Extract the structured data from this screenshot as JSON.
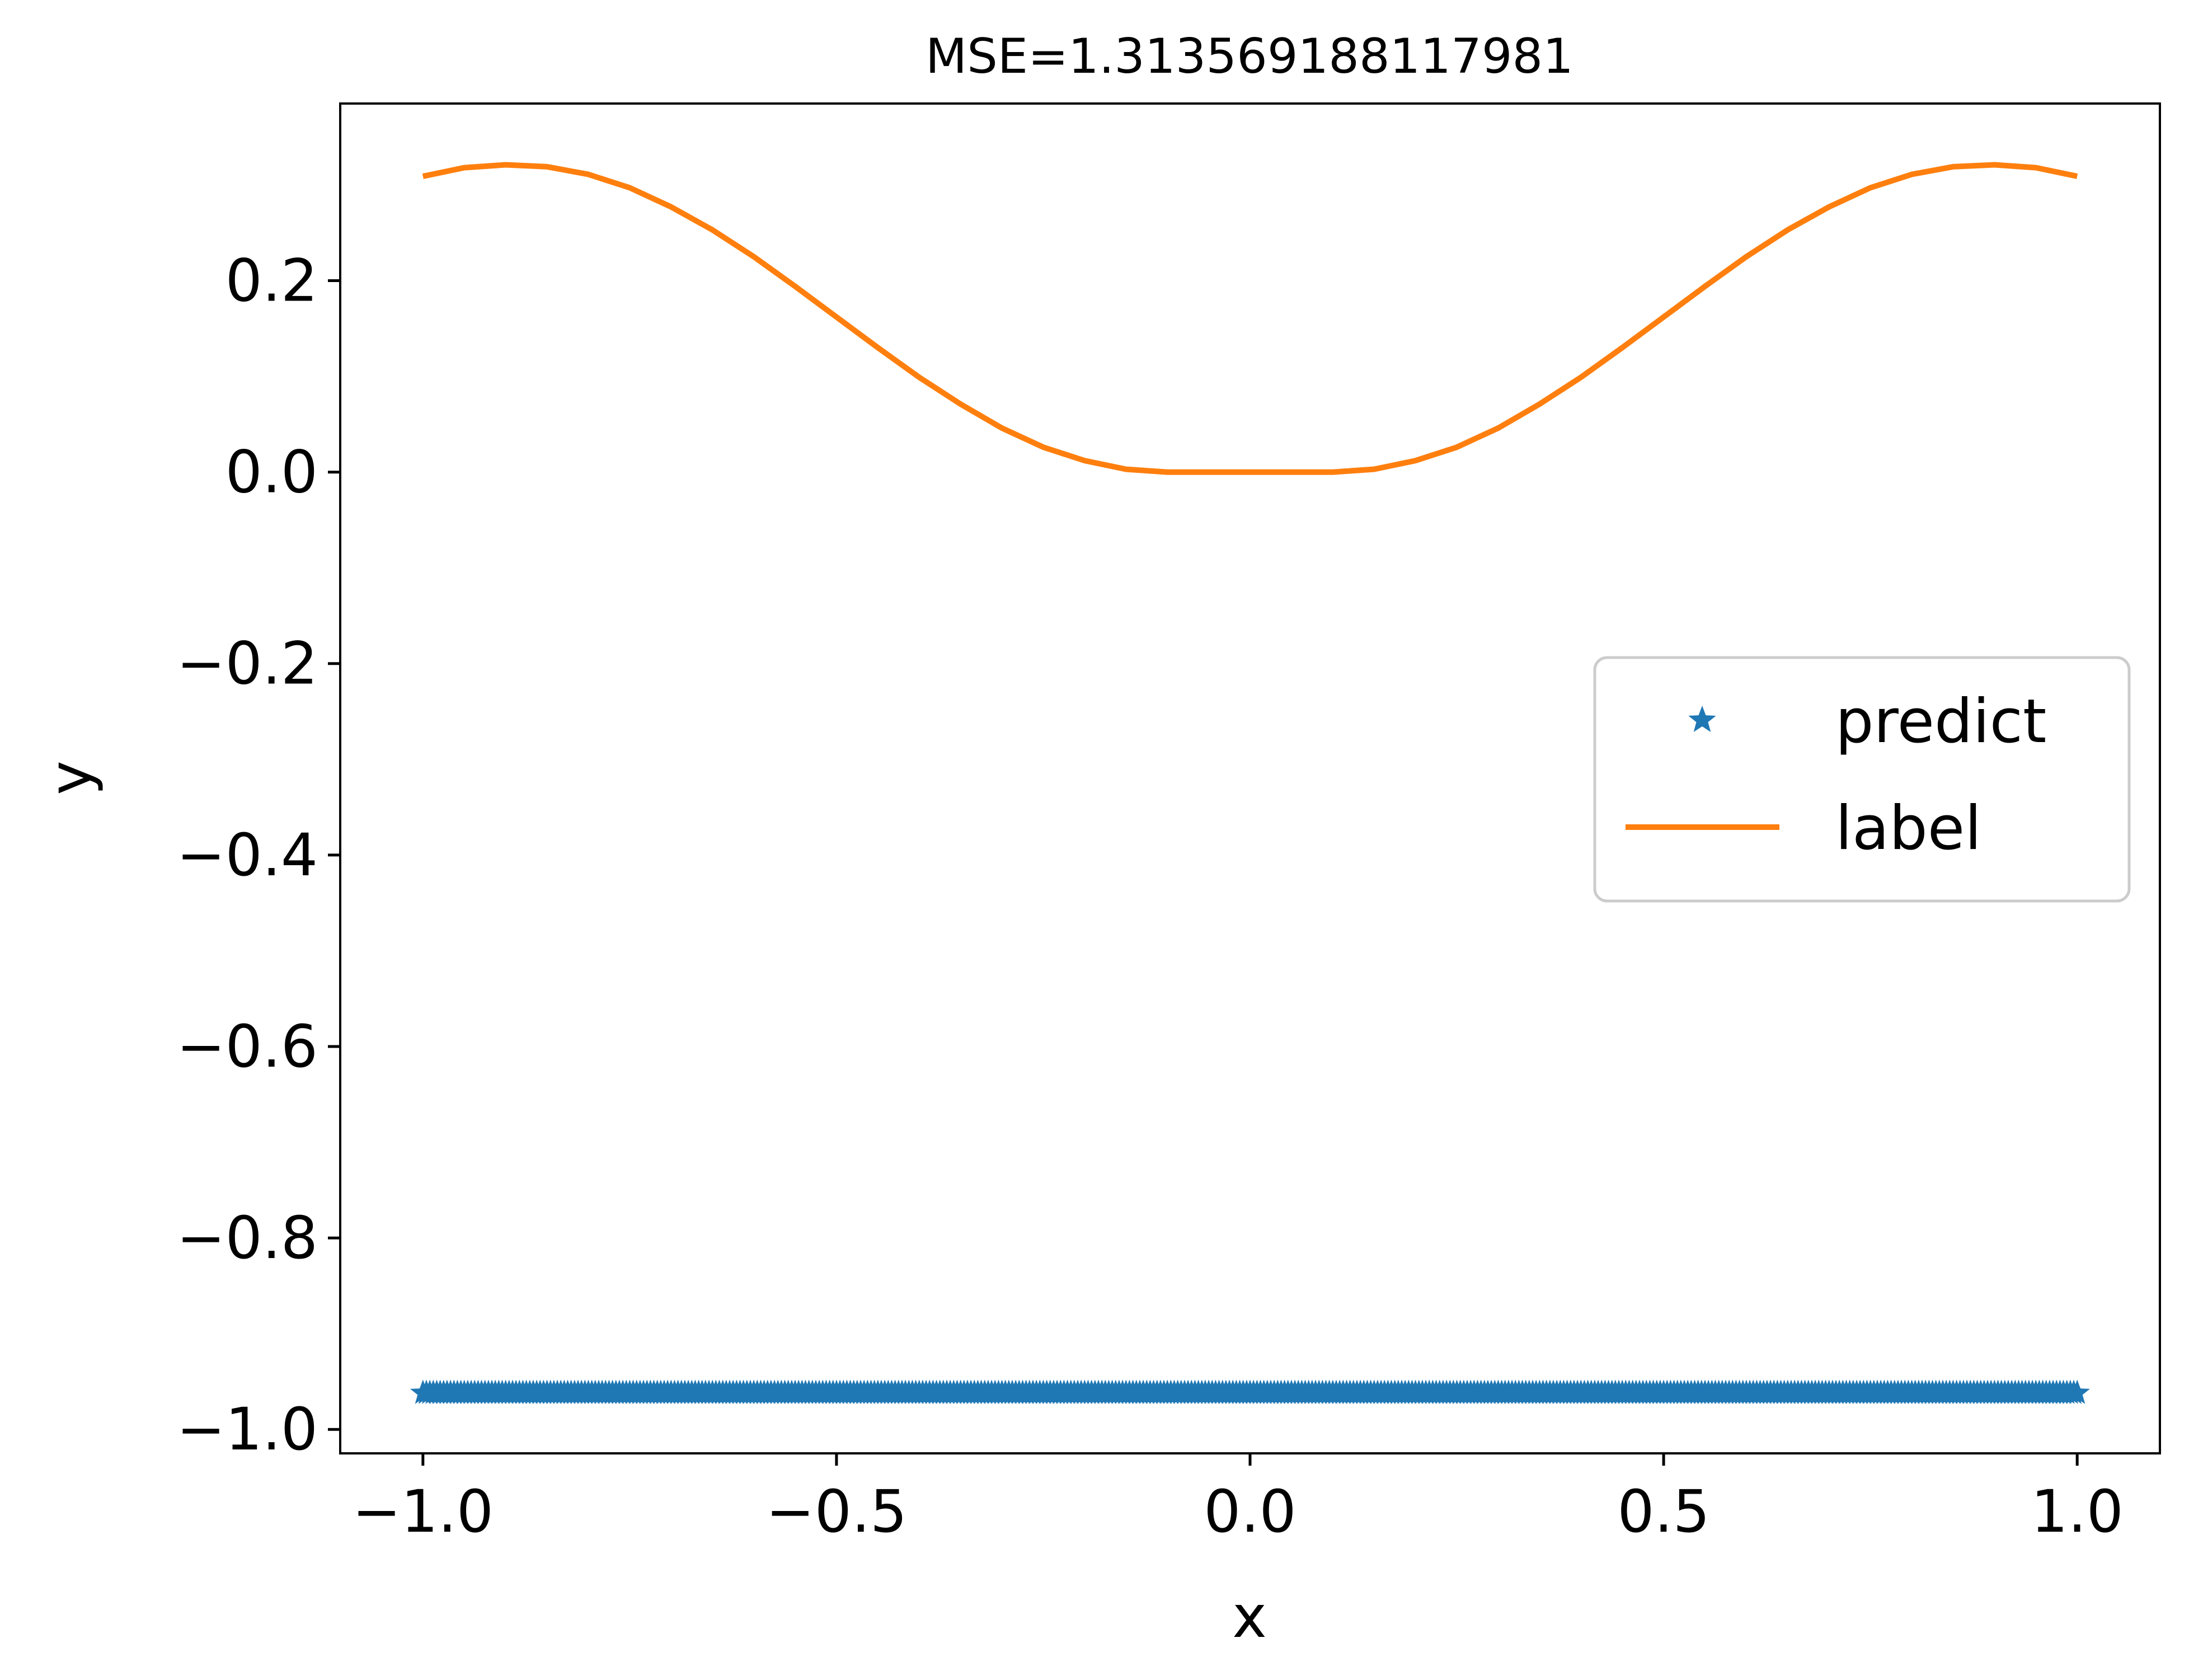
{
  "chart_data": {
    "type": "line",
    "title": "MSE=1.313569188117981",
    "xlabel": "x",
    "ylabel": "y",
    "xlim": [
      -1.1,
      1.1
    ],
    "ylim": [
      -1.025,
      0.385
    ],
    "x_ticks": [
      -1.0,
      -0.5,
      0.0,
      0.5,
      1.0
    ],
    "x_tick_labels": [
      "−1.0",
      "−0.5",
      "0.0",
      "0.5",
      "1.0"
    ],
    "y_ticks": [
      -1.0,
      -0.8,
      -0.6,
      -0.4,
      -0.2,
      0.0,
      0.2
    ],
    "y_tick_labels": [
      "−1.0",
      "−0.8",
      "−0.6",
      "−0.4",
      "−0.2",
      "0.0",
      "0.2"
    ],
    "grid": false,
    "legend": {
      "placement": "center-right"
    },
    "series": [
      {
        "name": "predict",
        "style": "markers",
        "marker": "star",
        "color": "#1f77b4",
        "x": [
          -1.0,
          -0.9,
          -0.8,
          -0.7,
          -0.6,
          -0.5,
          -0.4,
          -0.3,
          -0.2,
          -0.1,
          0.0,
          0.1,
          0.2,
          0.3,
          0.4,
          0.5,
          0.6,
          0.7,
          0.8,
          0.9,
          1.0
        ],
        "y": [
          -0.962,
          -0.962,
          -0.962,
          -0.962,
          -0.962,
          -0.962,
          -0.962,
          -0.962,
          -0.962,
          -0.962,
          -0.962,
          -0.962,
          -0.962,
          -0.962,
          -0.962,
          -0.962,
          -0.962,
          -0.962,
          -0.962,
          -0.962,
          -0.962
        ]
      },
      {
        "name": "label",
        "style": "line",
        "color": "#ff7f0e",
        "x": [
          -1.0,
          -0.95,
          -0.9,
          -0.85,
          -0.8,
          -0.75,
          -0.7,
          -0.65,
          -0.6,
          -0.55,
          -0.5,
          -0.45,
          -0.4,
          -0.35,
          -0.3,
          -0.25,
          -0.2,
          -0.15,
          -0.1,
          -0.05,
          0.0,
          0.05,
          0.1,
          0.15,
          0.2,
          0.25,
          0.3,
          0.35,
          0.4,
          0.45,
          0.5,
          0.55,
          0.6,
          0.65,
          0.7,
          0.75,
          0.8,
          0.85,
          0.9,
          0.95,
          1.0
        ],
        "y": [
          0.309,
          0.318,
          0.321,
          0.319,
          0.311,
          0.297,
          0.277,
          0.253,
          0.225,
          0.194,
          0.162,
          0.13,
          0.099,
          0.071,
          0.046,
          0.026,
          0.012,
          0.003,
          0.0,
          0.0,
          0.0,
          0.0,
          0.0,
          0.003,
          0.012,
          0.026,
          0.046,
          0.071,
          0.099,
          0.13,
          0.162,
          0.194,
          0.225,
          0.253,
          0.277,
          0.297,
          0.311,
          0.319,
          0.321,
          0.318,
          0.309
        ]
      }
    ]
  }
}
